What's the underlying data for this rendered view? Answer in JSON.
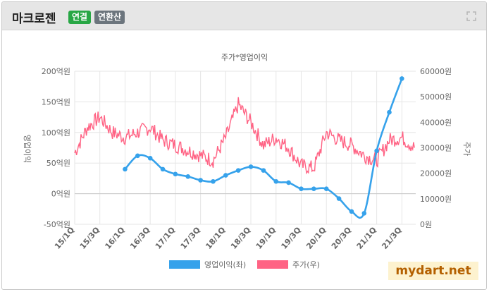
{
  "header": {
    "company": "마크로젠",
    "badge_consolidated": "연결",
    "badge_annualized": "연환산",
    "expand_icon": "expand-icon"
  },
  "brand": {
    "text": "mydart.net"
  },
  "chart_data": {
    "type": "line",
    "title": "주가*영업이익",
    "ylabel_left": "영업이익",
    "ylabel_right": "주가",
    "categories": [
      "15/1Q",
      "15/3Q",
      "16/1Q",
      "16/3Q",
      "17/1Q",
      "17/3Q",
      "18/1Q",
      "18/3Q",
      "19/1Q",
      "19/3Q",
      "20/1Q",
      "20/3Q",
      "21/1Q",
      "21/3Q"
    ],
    "y_left_ticks": [
      "200억원",
      "150억원",
      "100억원",
      "50억원",
      "0억원",
      "-50억원"
    ],
    "y_left_range": [
      -50,
      200
    ],
    "y_right_ticks": [
      "60000원",
      "50000원",
      "40000원",
      "30000원",
      "20000원",
      "10000원",
      "0원"
    ],
    "y_right_range": [
      0,
      60000
    ],
    "legend": [
      "영업이익(좌)",
      "주가(우)"
    ],
    "grid": true,
    "series": [
      {
        "name": "영업이익(좌)",
        "axis": "left",
        "color": "#36a2eb",
        "x": [
          "16/1Q",
          "16/2Q",
          "16/3Q",
          "16/4Q",
          "17/1Q",
          "17/2Q",
          "17/3Q",
          "17/4Q",
          "18/1Q",
          "18/2Q",
          "18/3Q",
          "18/4Q",
          "19/1Q",
          "19/2Q",
          "19/3Q",
          "19/4Q",
          "20/1Q",
          "20/2Q",
          "20/3Q",
          "20/4Q",
          "21/1Q",
          "21/2Q",
          "21/3Q"
        ],
        "values": [
          40,
          62,
          58,
          40,
          32,
          28,
          22,
          20,
          30,
          38,
          44,
          38,
          20,
          18,
          8,
          8,
          8,
          -8,
          -29,
          -32,
          70,
          133,
          188
        ]
      },
      {
        "name": "주가(우)",
        "axis": "right",
        "color": "#ff6384",
        "x": [
          "15/1Q",
          "15/2Q",
          "15/3Q",
          "15/4Q",
          "16/1Q",
          "16/2Q",
          "16/3Q",
          "16/4Q",
          "17/1Q",
          "17/2Q",
          "17/3Q",
          "17/4Q",
          "18/1Q",
          "18/2Q",
          "18/3Q",
          "18/4Q",
          "19/1Q",
          "19/2Q",
          "19/3Q",
          "19/4Q",
          "20/1Q",
          "20/2Q",
          "20/3Q",
          "20/4Q",
          "21/1Q",
          "21/2Q",
          "21/3Q",
          "21/4Q"
        ],
        "values": [
          28000,
          38000,
          42000,
          36000,
          34000,
          36000,
          38000,
          33000,
          31000,
          29000,
          27000,
          25000,
          34000,
          47000,
          40000,
          31000,
          34000,
          30000,
          23000,
          22000,
          36000,
          33000,
          31000,
          27000,
          25000,
          33000,
          34000,
          30000
        ]
      }
    ]
  }
}
